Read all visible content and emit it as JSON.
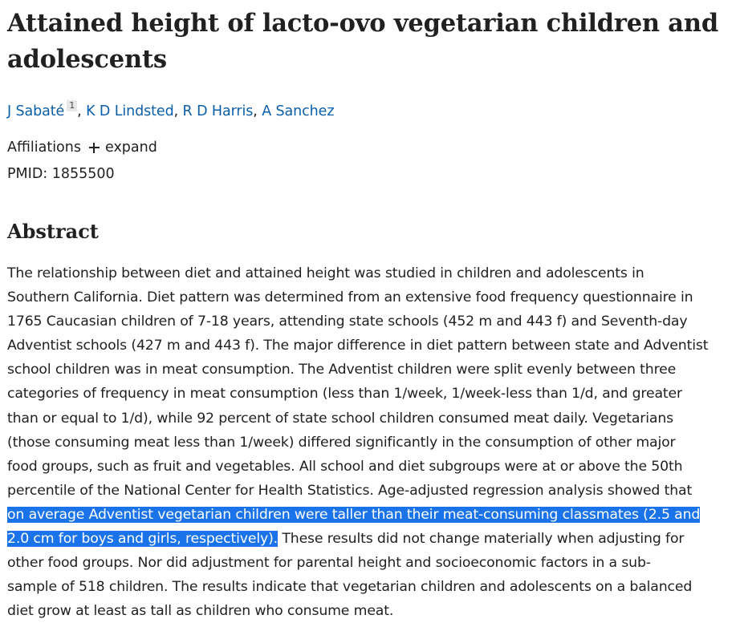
{
  "article": {
    "title": "Attained height of lacto-ovo vegetarian children and adolescents",
    "authors": [
      {
        "name": "J Sabaté",
        "affiliation_ref": "1"
      },
      {
        "name": "K D Lindsted"
      },
      {
        "name": "R D Harris"
      },
      {
        "name": "A Sanchez"
      }
    ],
    "separator": ",",
    "affiliations_label": "Affiliations",
    "expand_label": "expand",
    "pmid": "PMID: 1855500"
  },
  "abstract": {
    "heading": "Abstract",
    "lines": [
      "The relationship between diet and attained height was studied in children and adolescents in",
      "Southern California. Diet pattern was determined from an extensive food frequency questionnaire in",
      "1765 Caucasian children of 7-18 years, attending state schools (452 m and 443 f) and Seventh-day",
      "Adventist schools (427 m and 443 f). The major difference in diet pattern between state and Adventist",
      "school children was in meat consumption. The Adventist children were split evenly between three",
      "categories of frequency in meat consumption (less than 1/week, 1/week-less than 1/d, and greater",
      "than or equal to 1/d), while 92 percent of state school children consumed meat daily. Vegetarians",
      "(those consuming meat less than 1/week) differed significantly in the consumption of other major",
      "food groups, such as fruit and vegetables. All school and diet subgroups were at or above the 50th",
      "percentile of the National Center for Health Statistics. Age-adjusted regression analysis showed that"
    ],
    "highlight_line_1": "on average Adventist vegetarian children were taller than their meat-consuming classmates (2.5 and",
    "highlight_line_2": "2.0 cm for boys and girls, respectively).",
    "after_highlight": " These results did not change materially when adjusting for",
    "tail_lines": [
      "other food groups. Nor did adjustment for parental height and socioeconomic factors in a sub-",
      "sample of 518 children. The results indicate that vegetarian children and adolescents on a balanced",
      "diet grow at least as tall as children who consume meat."
    ],
    "highlight_color": "#1a73e8"
  },
  "colors": {
    "link": "#0b5ea8",
    "text": "#212121"
  }
}
